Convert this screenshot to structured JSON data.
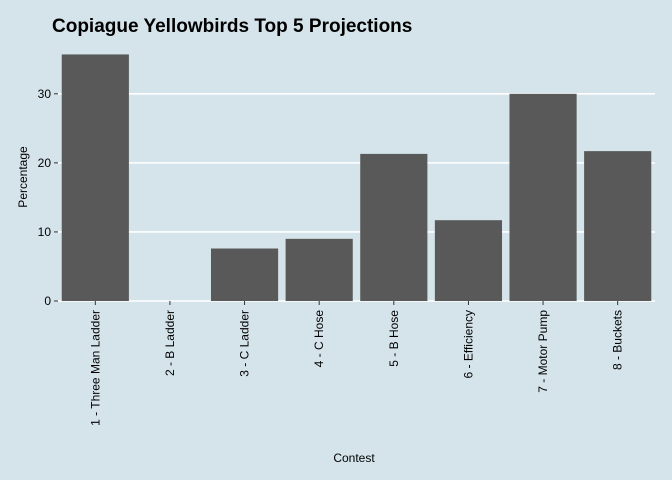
{
  "chart_data": {
    "type": "bar",
    "title": "Copiague Yellowbirds Top 5 Projections",
    "xlabel": "Contest",
    "ylabel": "Percentage",
    "categories": [
      "1 - Three Man Ladder",
      "2 - B Ladder",
      "3 - C Ladder",
      "4 - C Hose",
      "5 - B Hose",
      "6 - Efficiency",
      "7 - Motor Pump",
      "8 - Buckets"
    ],
    "values": [
      35.7,
      0,
      7.6,
      9.0,
      21.3,
      11.7,
      30.0,
      21.7
    ],
    "ylim": [
      0,
      37.5
    ],
    "yticks": [
      0,
      10,
      20,
      30
    ],
    "grid": "horizontal",
    "legend": "none",
    "colors": {
      "background": "#d5e4eb",
      "bar": "#595959",
      "grid": "#ffffff"
    }
  }
}
